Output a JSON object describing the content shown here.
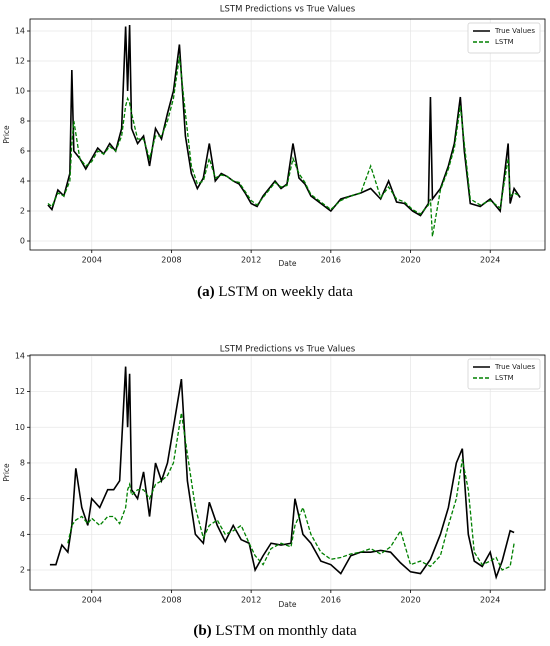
{
  "chart_data": [
    {
      "type": "line",
      "title": "LSTM Predictions vs True Values",
      "xlabel": "Date",
      "ylabel": "Price",
      "caption_label": "(a)",
      "caption": "LSTM on weekly data",
      "x": [
        2001.8,
        2002.0,
        2002.3,
        2002.6,
        2002.9,
        2003.0,
        2003.1,
        2003.4,
        2003.7,
        2004.0,
        2004.3,
        2004.6,
        2004.9,
        2005.2,
        2005.5,
        2005.7,
        2005.8,
        2005.9,
        2006.0,
        2006.3,
        2006.6,
        2006.9,
        2007.2,
        2007.5,
        2007.8,
        2008.1,
        2008.4,
        2008.7,
        2009.0,
        2009.3,
        2009.6,
        2009.9,
        2010.2,
        2010.5,
        2010.8,
        2011.1,
        2011.4,
        2011.7,
        2012.0,
        2012.3,
        2012.6,
        2012.9,
        2013.2,
        2013.5,
        2013.8,
        2014.1,
        2014.4,
        2014.7,
        2015.0,
        2015.5,
        2016.0,
        2016.5,
        2017.0,
        2017.5,
        2018.0,
        2018.5,
        2018.9,
        2019.3,
        2019.7,
        2020.1,
        2020.5,
        2020.9,
        2021.0,
        2021.1,
        2021.5,
        2021.9,
        2022.2,
        2022.5,
        2022.7,
        2023.0,
        2023.5,
        2024.0,
        2024.5,
        2024.9,
        2025.0,
        2025.2,
        2025.5
      ],
      "series": [
        {
          "name": "True Values",
          "color": "#000000",
          "dash": false,
          "values": [
            2.4,
            2.1,
            3.4,
            3.0,
            4.5,
            11.4,
            6.0,
            5.5,
            4.8,
            5.5,
            6.2,
            5.8,
            6.5,
            6.0,
            7.5,
            14.3,
            10.0,
            14.4,
            7.5,
            6.5,
            7.0,
            5.0,
            7.5,
            6.8,
            8.5,
            10.0,
            13.1,
            7.0,
            4.5,
            3.5,
            4.2,
            6.5,
            4.0,
            4.5,
            4.3,
            4.0,
            3.8,
            3.2,
            2.5,
            2.3,
            3.0,
            3.5,
            4.0,
            3.5,
            3.8,
            6.5,
            4.2,
            3.8,
            3.0,
            2.5,
            2.0,
            2.8,
            3.0,
            3.2,
            3.5,
            2.8,
            4.0,
            2.6,
            2.5,
            2.0,
            1.7,
            2.5,
            9.6,
            2.8,
            3.5,
            5.0,
            6.5,
            9.6,
            6.0,
            2.5,
            2.3,
            2.8,
            2.0,
            6.5,
            2.5,
            3.5,
            2.9
          ]
        },
        {
          "name": "LSTM",
          "color": "#008000",
          "dash": true,
          "values": [
            2.5,
            2.3,
            3.2,
            3.0,
            4.0,
            6.5,
            8.0,
            5.5,
            5.0,
            5.3,
            6.0,
            5.8,
            6.3,
            6.0,
            7.0,
            9.0,
            9.5,
            9.2,
            8.5,
            6.8,
            6.8,
            5.5,
            7.0,
            7.0,
            8.0,
            9.5,
            12.3,
            8.5,
            5.0,
            3.8,
            4.0,
            5.5,
            4.2,
            4.4,
            4.3,
            4.0,
            3.9,
            3.3,
            2.7,
            2.4,
            2.9,
            3.4,
            3.9,
            3.6,
            3.7,
            5.5,
            4.5,
            3.9,
            3.1,
            2.6,
            2.1,
            2.7,
            3.0,
            3.2,
            5.0,
            2.9,
            3.6,
            2.8,
            2.6,
            2.1,
            1.8,
            2.4,
            2.8,
            0.3,
            3.4,
            4.8,
            6.2,
            9.0,
            6.5,
            2.8,
            2.4,
            2.7,
            2.2,
            5.5,
            3.0,
            3.2,
            3.0
          ]
        }
      ],
      "xlim": [
        2000.9,
        2026.75
      ],
      "xticks": [
        2004,
        2008,
        2012,
        2016,
        2020,
        2024
      ],
      "ylim": [
        -0.6,
        14.8
      ],
      "yticks": [
        0,
        2,
        4,
        6,
        8,
        10,
        12,
        14
      ],
      "grid": true,
      "legend": "upper right"
    },
    {
      "type": "line",
      "title": "LSTM Predictions vs True Values",
      "xlabel": "Date",
      "ylabel": "Price",
      "caption_label": "(b)",
      "caption": "LSTM on monthly data",
      "x": [
        2001.9,
        2002.2,
        2002.5,
        2002.8,
        2003.0,
        2003.2,
        2003.5,
        2003.8,
        2004.0,
        2004.4,
        2004.8,
        2005.1,
        2005.4,
        2005.7,
        2005.8,
        2005.9,
        2006.0,
        2006.3,
        2006.6,
        2006.9,
        2007.2,
        2007.5,
        2007.8,
        2008.1,
        2008.5,
        2008.8,
        2009.2,
        2009.6,
        2009.9,
        2010.3,
        2010.7,
        2011.1,
        2011.5,
        2011.9,
        2012.2,
        2012.6,
        2013.0,
        2013.5,
        2014.0,
        2014.2,
        2014.6,
        2015.0,
        2015.5,
        2016.0,
        2016.5,
        2017.0,
        2017.5,
        2018.0,
        2018.5,
        2019.0,
        2019.5,
        2020.0,
        2020.5,
        2021.0,
        2021.5,
        2021.9,
        2022.3,
        2022.6,
        2022.9,
        2023.2,
        2023.6,
        2024.0,
        2024.3,
        2024.6,
        2025.0,
        2025.2
      ],
      "series": [
        {
          "name": "True Values",
          "color": "#000000",
          "dash": false,
          "values": [
            2.3,
            2.3,
            3.4,
            3.0,
            4.5,
            7.7,
            5.5,
            4.5,
            6.0,
            5.5,
            6.5,
            6.5,
            7.0,
            13.4,
            10.0,
            13.0,
            6.5,
            6.0,
            7.5,
            5.0,
            8.0,
            7.0,
            8.0,
            10.0,
            12.7,
            7.0,
            4.0,
            3.5,
            5.8,
            4.5,
            3.6,
            4.5,
            3.7,
            3.5,
            2.0,
            2.8,
            3.5,
            3.4,
            3.5,
            6.0,
            4.0,
            3.5,
            2.5,
            2.3,
            1.8,
            2.8,
            3.0,
            3.0,
            3.1,
            3.0,
            2.4,
            1.9,
            1.8,
            2.6,
            4.0,
            5.5,
            8.0,
            8.8,
            4.0,
            2.5,
            2.2,
            3.0,
            1.6,
            2.5,
            4.2,
            4.1
          ]
        },
        {
          "name": "LSTM",
          "color": "#008000",
          "dash": true,
          "values": [
            null,
            null,
            null,
            3.5,
            4.5,
            4.8,
            5.0,
            4.6,
            4.9,
            4.5,
            5.0,
            5.0,
            4.6,
            5.5,
            6.5,
            6.8,
            6.2,
            6.5,
            6.5,
            6.0,
            6.8,
            7.0,
            7.3,
            8.0,
            10.8,
            8.5,
            5.5,
            3.8,
            4.5,
            4.8,
            4.0,
            4.2,
            4.5,
            3.5,
            2.8,
            2.3,
            3.2,
            3.5,
            3.3,
            4.5,
            5.5,
            4.0,
            3.0,
            2.6,
            2.7,
            2.9,
            3.0,
            3.2,
            2.9,
            3.3,
            4.2,
            2.3,
            2.5,
            2.2,
            2.8,
            4.5,
            6.0,
            8.2,
            6.5,
            3.0,
            2.3,
            2.5,
            2.7,
            2.0,
            2.2,
            3.5
          ]
        }
      ],
      "xlim": [
        2000.9,
        2026.75
      ],
      "xticks": [
        2004,
        2008,
        2012,
        2016,
        2020,
        2024
      ],
      "ylim": [
        0.88,
        14.05
      ],
      "yticks": [
        2,
        4,
        6,
        8,
        10,
        12,
        14
      ],
      "grid": true,
      "legend": "upper right"
    }
  ]
}
